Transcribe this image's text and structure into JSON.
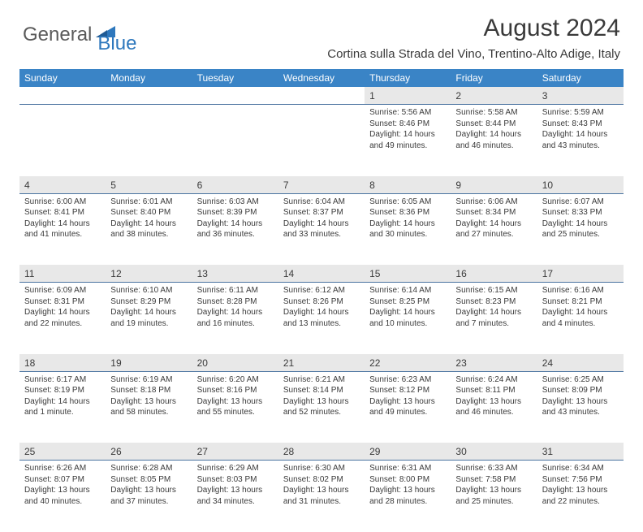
{
  "brand": {
    "part1": "General",
    "part2": "Blue"
  },
  "title": "August 2024",
  "location": "Cortina sulla Strada del Vino, Trentino-Alto Adige, Italy",
  "colors": {
    "header_bg": "#3a84c6",
    "header_text": "#ffffff",
    "daynum_bg": "#e8e8e8",
    "daynum_border": "#4a73a0",
    "body_text": "#3a3a3a",
    "logo_gray": "#5a5a5a",
    "logo_blue": "#2e78bd",
    "page_bg": "#ffffff"
  },
  "typography": {
    "month_title_size": 30,
    "location_size": 15,
    "weekday_size": 12,
    "daynum_size": 12,
    "cell_size": 10
  },
  "weekdays": [
    "Sunday",
    "Monday",
    "Tuesday",
    "Wednesday",
    "Thursday",
    "Friday",
    "Saturday"
  ],
  "weeks": [
    [
      null,
      null,
      null,
      null,
      {
        "n": "1",
        "sr": "5:56 AM",
        "ss": "8:46 PM",
        "dl": "14 hours and 49 minutes."
      },
      {
        "n": "2",
        "sr": "5:58 AM",
        "ss": "8:44 PM",
        "dl": "14 hours and 46 minutes."
      },
      {
        "n": "3",
        "sr": "5:59 AM",
        "ss": "8:43 PM",
        "dl": "14 hours and 43 minutes."
      }
    ],
    [
      {
        "n": "4",
        "sr": "6:00 AM",
        "ss": "8:41 PM",
        "dl": "14 hours and 41 minutes."
      },
      {
        "n": "5",
        "sr": "6:01 AM",
        "ss": "8:40 PM",
        "dl": "14 hours and 38 minutes."
      },
      {
        "n": "6",
        "sr": "6:03 AM",
        "ss": "8:39 PM",
        "dl": "14 hours and 36 minutes."
      },
      {
        "n": "7",
        "sr": "6:04 AM",
        "ss": "8:37 PM",
        "dl": "14 hours and 33 minutes."
      },
      {
        "n": "8",
        "sr": "6:05 AM",
        "ss": "8:36 PM",
        "dl": "14 hours and 30 minutes."
      },
      {
        "n": "9",
        "sr": "6:06 AM",
        "ss": "8:34 PM",
        "dl": "14 hours and 27 minutes."
      },
      {
        "n": "10",
        "sr": "6:07 AM",
        "ss": "8:33 PM",
        "dl": "14 hours and 25 minutes."
      }
    ],
    [
      {
        "n": "11",
        "sr": "6:09 AM",
        "ss": "8:31 PM",
        "dl": "14 hours and 22 minutes."
      },
      {
        "n": "12",
        "sr": "6:10 AM",
        "ss": "8:29 PM",
        "dl": "14 hours and 19 minutes."
      },
      {
        "n": "13",
        "sr": "6:11 AM",
        "ss": "8:28 PM",
        "dl": "14 hours and 16 minutes."
      },
      {
        "n": "14",
        "sr": "6:12 AM",
        "ss": "8:26 PM",
        "dl": "14 hours and 13 minutes."
      },
      {
        "n": "15",
        "sr": "6:14 AM",
        "ss": "8:25 PM",
        "dl": "14 hours and 10 minutes."
      },
      {
        "n": "16",
        "sr": "6:15 AM",
        "ss": "8:23 PM",
        "dl": "14 hours and 7 minutes."
      },
      {
        "n": "17",
        "sr": "6:16 AM",
        "ss": "8:21 PM",
        "dl": "14 hours and 4 minutes."
      }
    ],
    [
      {
        "n": "18",
        "sr": "6:17 AM",
        "ss": "8:19 PM",
        "dl": "14 hours and 1 minute."
      },
      {
        "n": "19",
        "sr": "6:19 AM",
        "ss": "8:18 PM",
        "dl": "13 hours and 58 minutes."
      },
      {
        "n": "20",
        "sr": "6:20 AM",
        "ss": "8:16 PM",
        "dl": "13 hours and 55 minutes."
      },
      {
        "n": "21",
        "sr": "6:21 AM",
        "ss": "8:14 PM",
        "dl": "13 hours and 52 minutes."
      },
      {
        "n": "22",
        "sr": "6:23 AM",
        "ss": "8:12 PM",
        "dl": "13 hours and 49 minutes."
      },
      {
        "n": "23",
        "sr": "6:24 AM",
        "ss": "8:11 PM",
        "dl": "13 hours and 46 minutes."
      },
      {
        "n": "24",
        "sr": "6:25 AM",
        "ss": "8:09 PM",
        "dl": "13 hours and 43 minutes."
      }
    ],
    [
      {
        "n": "25",
        "sr": "6:26 AM",
        "ss": "8:07 PM",
        "dl": "13 hours and 40 minutes."
      },
      {
        "n": "26",
        "sr": "6:28 AM",
        "ss": "8:05 PM",
        "dl": "13 hours and 37 minutes."
      },
      {
        "n": "27",
        "sr": "6:29 AM",
        "ss": "8:03 PM",
        "dl": "13 hours and 34 minutes."
      },
      {
        "n": "28",
        "sr": "6:30 AM",
        "ss": "8:02 PM",
        "dl": "13 hours and 31 minutes."
      },
      {
        "n": "29",
        "sr": "6:31 AM",
        "ss": "8:00 PM",
        "dl": "13 hours and 28 minutes."
      },
      {
        "n": "30",
        "sr": "6:33 AM",
        "ss": "7:58 PM",
        "dl": "13 hours and 25 minutes."
      },
      {
        "n": "31",
        "sr": "6:34 AM",
        "ss": "7:56 PM",
        "dl": "13 hours and 22 minutes."
      }
    ]
  ],
  "labels": {
    "sunrise": "Sunrise:",
    "sunset": "Sunset:",
    "daylight": "Daylight:"
  }
}
